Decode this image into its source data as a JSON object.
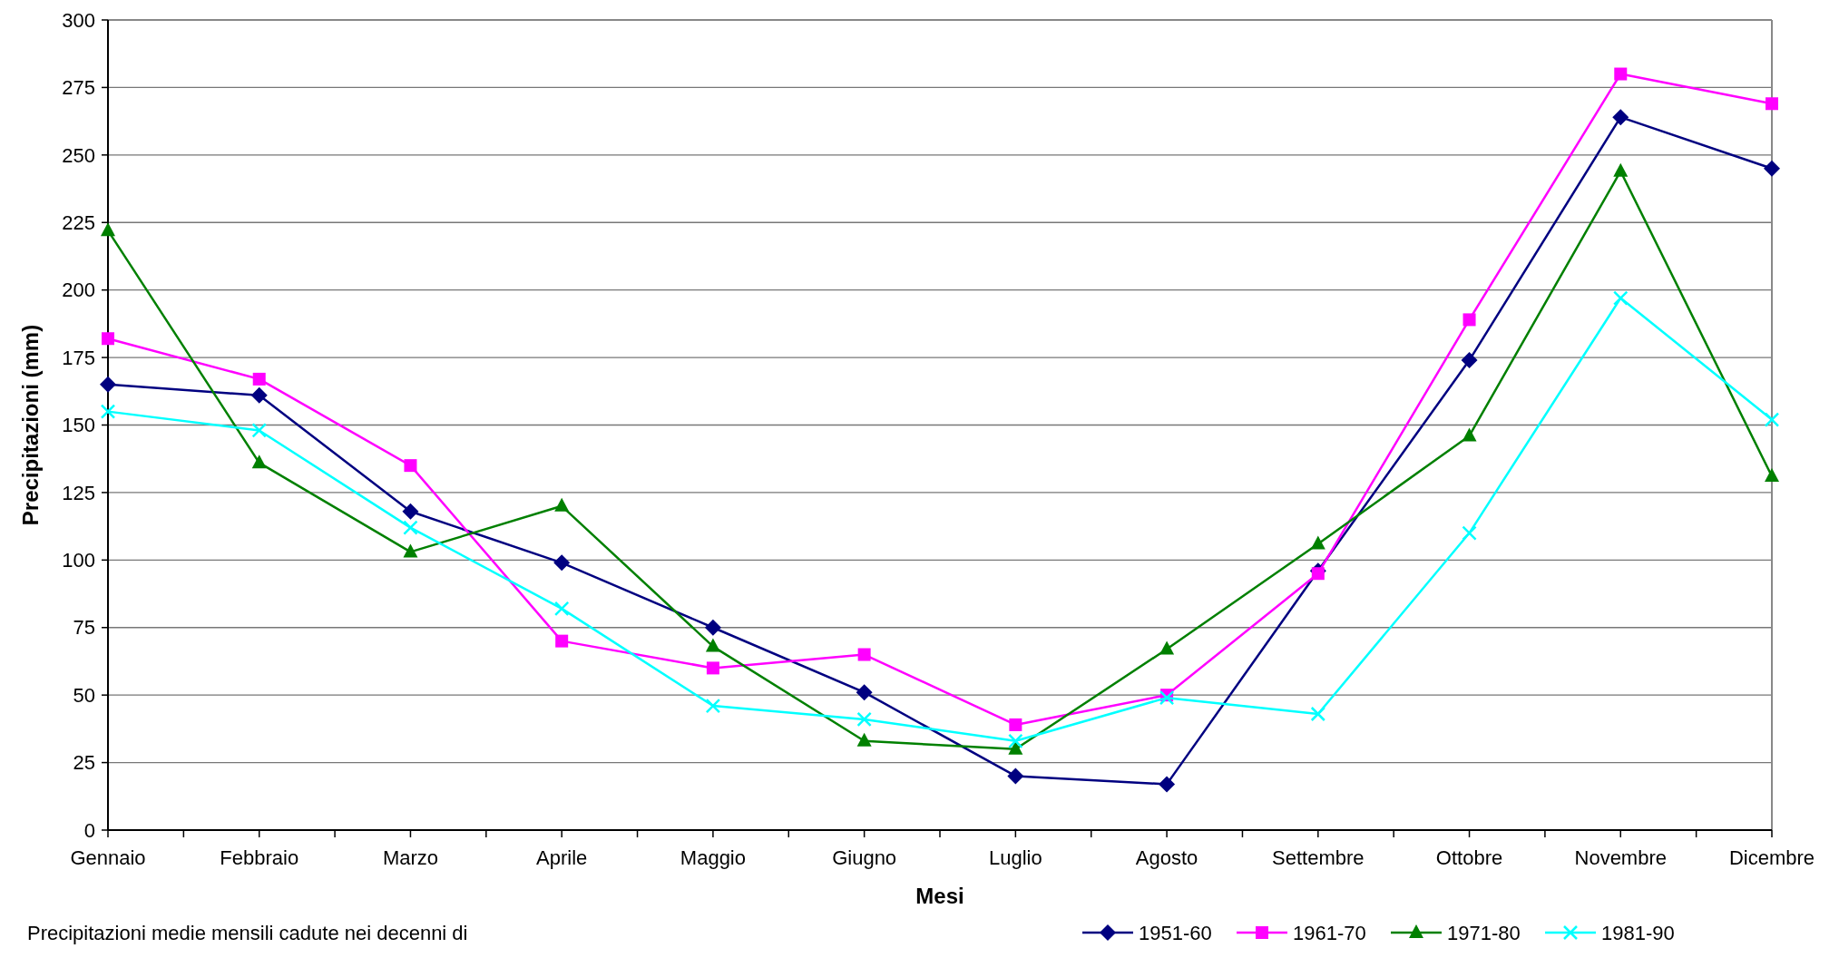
{
  "chart_data": {
    "type": "line",
    "xlabel": "Mesi",
    "ylabel": "Precipitazioni (mm)",
    "annotations": [
      "Precipitazioni medie mensili cadute nei decenni di"
    ],
    "categories": [
      "Gennaio",
      "Febbraio",
      "Marzo",
      "Aprile",
      "Maggio",
      "Giugno",
      "Luglio",
      "Agosto",
      "Settembre",
      "Ottobre",
      "Novembre",
      "Dicembre"
    ],
    "series": [
      {
        "name": "1951-60",
        "color": "#000080",
        "marker": "diamond",
        "values": [
          165,
          161,
          118,
          99,
          75,
          51,
          20,
          17,
          96,
          174,
          264,
          245
        ]
      },
      {
        "name": "1961-70",
        "color": "#ff00ff",
        "marker": "square",
        "values": [
          182,
          167,
          135,
          70,
          60,
          65,
          39,
          50,
          95,
          189,
          280,
          269
        ]
      },
      {
        "name": "1971-80",
        "color": "#008000",
        "marker": "triangle",
        "values": [
          222,
          136,
          103,
          120,
          68,
          33,
          30,
          67,
          106,
          146,
          244,
          131
        ]
      },
      {
        "name": "1981-90",
        "color": "#00ffff",
        "marker": "cross",
        "values": [
          155,
          148,
          112,
          82,
          46,
          41,
          33,
          49,
          43,
          110,
          197,
          152
        ]
      }
    ],
    "ylim": [
      0,
      300
    ],
    "yticks": [
      0,
      25,
      50,
      75,
      100,
      125,
      150,
      175,
      200,
      225,
      250,
      275,
      300
    ],
    "grid": "y",
    "legend": "bottom right"
  }
}
